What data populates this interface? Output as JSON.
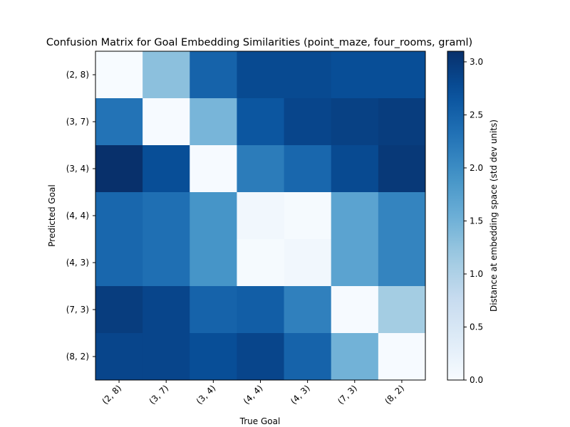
{
  "chart_data": {
    "type": "heatmap",
    "title": "Confusion Matrix for Goal Embedding Similarities (point_maze, four_rooms, graml)",
    "xlabel": "True Goal",
    "ylabel": "Predicted Goal",
    "x_categories": [
      "(2, 8)",
      "(3, 7)",
      "(3, 4)",
      "(4, 4)",
      "(4, 3)",
      "(7, 3)",
      "(8, 2)"
    ],
    "y_categories": [
      "(2, 8)",
      "(3, 7)",
      "(3, 4)",
      "(4, 4)",
      "(4, 3)",
      "(7, 3)",
      "(8, 2)"
    ],
    "values": [
      [
        0.0,
        1.3,
        2.5,
        2.8,
        2.8,
        2.75,
        2.75
      ],
      [
        2.3,
        0.02,
        1.45,
        2.65,
        2.85,
        2.9,
        2.95
      ],
      [
        3.1,
        2.75,
        0.02,
        2.2,
        2.45,
        2.8,
        3.0
      ],
      [
        2.45,
        2.35,
        1.9,
        0.1,
        0.03,
        1.7,
        2.1
      ],
      [
        2.45,
        2.35,
        1.9,
        0.03,
        0.1,
        1.7,
        2.1
      ],
      [
        2.95,
        2.85,
        2.5,
        2.55,
        2.15,
        0.02,
        1.1
      ],
      [
        2.85,
        2.85,
        2.75,
        2.85,
        2.5,
        1.5,
        0.02
      ]
    ],
    "colormap": "Blues",
    "value_range": [
      0,
      3.1
    ],
    "colorbar": {
      "label": "Distance at embedding space (std dev units)",
      "ticks": [
        "0.0",
        "0.5",
        "1.0",
        "1.5",
        "2.0",
        "2.5",
        "3.0"
      ]
    }
  }
}
